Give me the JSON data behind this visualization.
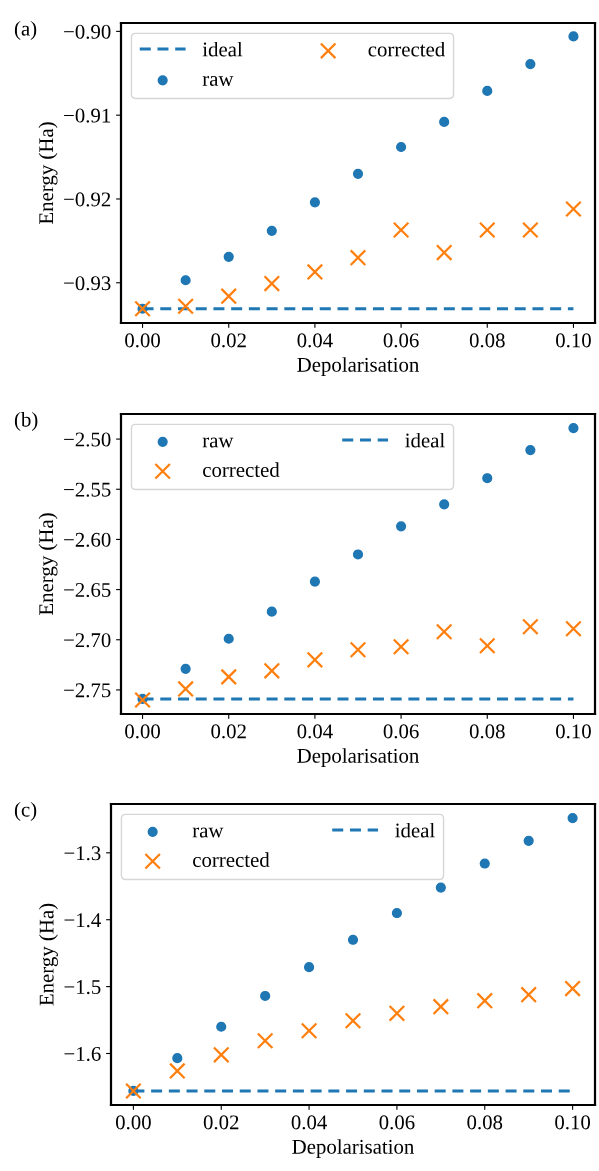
{
  "chart_data": [
    {
      "type": "scatter",
      "annotations": [
        "(a)"
      ],
      "xlabel": "Depolarisation",
      "ylabel": "Energy (Ha)",
      "legend": "top left",
      "grid": false,
      "x": [
        0.0,
        0.01,
        0.02,
        0.03,
        0.04,
        0.05,
        0.06,
        0.07,
        0.08,
        0.09,
        0.1
      ],
      "xlim": [
        -0.005,
        0.105
      ],
      "xticks": [
        {
          "value": 0.0,
          "label": "0.00"
        },
        {
          "value": 0.02,
          "label": "0.02"
        },
        {
          "value": 0.04,
          "label": "0.04"
        },
        {
          "value": 0.06,
          "label": "0.06"
        },
        {
          "value": 0.08,
          "label": "0.08"
        },
        {
          "value": 0.1,
          "label": "0.10"
        }
      ],
      "ylim": [
        -0.9348,
        -0.899
      ],
      "yticks": [
        {
          "value": -0.9,
          "label": "−0.90"
        },
        {
          "value": -0.91,
          "label": "−0.91"
        },
        {
          "value": -0.92,
          "label": "−0.92"
        },
        {
          "value": -0.93,
          "label": "−0.93"
        }
      ],
      "series": [
        {
          "name": "ideal",
          "type": "line",
          "line_style": "dashed",
          "marker": "none",
          "color": "#1f77b4",
          "values": [
            -0.9331,
            -0.9331,
            -0.9331,
            -0.9331,
            -0.9331,
            -0.9331,
            -0.9331,
            -0.9331,
            -0.9331,
            -0.9331,
            -0.9331
          ]
        },
        {
          "name": "raw",
          "marker": "circle",
          "color": "#1f77b4",
          "values": [
            -0.9331,
            -0.9297,
            -0.9269,
            -0.9238,
            -0.9204,
            -0.917,
            -0.9138,
            -0.9108,
            -0.9071,
            -0.9039,
            -0.9006
          ]
        },
        {
          "name": "corrected",
          "marker": "cross",
          "color": "#ff7f0e",
          "values": [
            -0.9331,
            -0.9328,
            -0.9316,
            -0.9301,
            -0.9287,
            -0.927,
            -0.9237,
            -0.9264,
            -0.9237,
            -0.9237,
            -0.9212
          ]
        }
      ]
    },
    {
      "type": "scatter",
      "annotations": [
        "(b)"
      ],
      "xlabel": "Depolarisation",
      "ylabel": "Energy (Ha)",
      "legend": "top left",
      "grid": false,
      "x": [
        0.0,
        0.01,
        0.02,
        0.03,
        0.04,
        0.05,
        0.06,
        0.07,
        0.08,
        0.09,
        0.1
      ],
      "xlim": [
        -0.005,
        0.105
      ],
      "xticks": [
        {
          "value": 0.0,
          "label": "0.00"
        },
        {
          "value": 0.02,
          "label": "0.02"
        },
        {
          "value": 0.04,
          "label": "0.04"
        },
        {
          "value": 0.06,
          "label": "0.06"
        },
        {
          "value": 0.08,
          "label": "0.08"
        },
        {
          "value": 0.1,
          "label": "0.10"
        }
      ],
      "ylim": [
        -2.774,
        -2.475
      ],
      "yticks": [
        {
          "value": -2.5,
          "label": "−2.50"
        },
        {
          "value": -2.55,
          "label": "−2.55"
        },
        {
          "value": -2.6,
          "label": "−2.60"
        },
        {
          "value": -2.65,
          "label": "−2.65"
        },
        {
          "value": -2.7,
          "label": "−2.70"
        },
        {
          "value": -2.75,
          "label": "−2.75"
        }
      ],
      "series": [
        {
          "name": "raw",
          "marker": "circle",
          "color": "#1f77b4",
          "values": [
            -2.759,
            -2.729,
            -2.699,
            -2.672,
            -2.642,
            -2.615,
            -2.587,
            -2.565,
            -2.539,
            -2.511,
            -2.489
          ]
        },
        {
          "name": "corrected",
          "marker": "cross",
          "color": "#ff7f0e",
          "values": [
            -2.76,
            -2.749,
            -2.737,
            -2.731,
            -2.72,
            -2.71,
            -2.707,
            -2.692,
            -2.706,
            -2.687,
            -2.689
          ]
        },
        {
          "name": "ideal",
          "type": "line",
          "line_style": "dashed",
          "marker": "none",
          "color": "#1f77b4",
          "values": [
            -2.759,
            -2.759,
            -2.759,
            -2.759,
            -2.759,
            -2.759,
            -2.759,
            -2.759,
            -2.759,
            -2.759,
            -2.759
          ]
        }
      ]
    },
    {
      "type": "scatter",
      "annotations": [
        "(c)"
      ],
      "xlabel": "Depolarisation",
      "ylabel": "Energy (Ha)",
      "legend": "top left",
      "grid": false,
      "x": [
        0.0,
        0.01,
        0.02,
        0.03,
        0.04,
        0.05,
        0.06,
        0.07,
        0.08,
        0.09,
        0.1
      ],
      "xlim": [
        -0.0051,
        0.1051
      ],
      "xticks": [
        {
          "value": 0.0,
          "label": "0.00"
        },
        {
          "value": 0.02,
          "label": "0.02"
        },
        {
          "value": 0.04,
          "label": "0.04"
        },
        {
          "value": 0.06,
          "label": "0.06"
        },
        {
          "value": 0.08,
          "label": "0.08"
        },
        {
          "value": 0.1,
          "label": "0.10"
        }
      ],
      "ylim": [
        -1.677,
        -1.227
      ],
      "yticks": [
        {
          "value": -1.3,
          "label": "−1.3"
        },
        {
          "value": -1.4,
          "label": "−1.4"
        },
        {
          "value": -1.5,
          "label": "−1.5"
        },
        {
          "value": -1.6,
          "label": "−1.6"
        }
      ],
      "series": [
        {
          "name": "raw",
          "marker": "circle",
          "color": "#1f77b4",
          "values": [
            -1.656,
            -1.607,
            -1.56,
            -1.514,
            -1.471,
            -1.43,
            -1.39,
            -1.352,
            -1.316,
            -1.282,
            -1.248
          ]
        },
        {
          "name": "corrected",
          "marker": "cross",
          "color": "#ff7f0e",
          "values": [
            -1.656,
            -1.626,
            -1.602,
            -1.581,
            -1.566,
            -1.551,
            -1.54,
            -1.53,
            -1.521,
            -1.512,
            -1.503
          ]
        },
        {
          "name": "ideal",
          "type": "line",
          "line_style": "dashed",
          "marker": "none",
          "color": "#1f77b4",
          "values": [
            -1.656,
            -1.656,
            -1.656,
            -1.656,
            -1.656,
            -1.656,
            -1.656,
            -1.656,
            -1.656,
            -1.656,
            -1.656
          ]
        }
      ]
    }
  ]
}
